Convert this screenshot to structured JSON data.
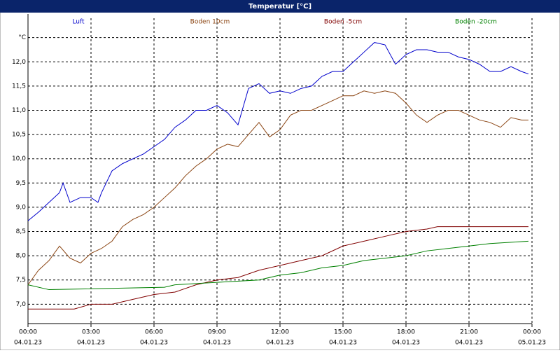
{
  "chart_data": {
    "type": "line",
    "title": "Temperatur [°C]",
    "series": [
      {
        "name": "Luft",
        "color": "#0000cc",
        "x": [
          0,
          0.5,
          1,
          1.5,
          1.67,
          2,
          2.5,
          3,
          3.33,
          3.5,
          4,
          4.5,
          5,
          5.5,
          6,
          6.5,
          7,
          7.5,
          8,
          8.5,
          9,
          9.5,
          10,
          10.5,
          11,
          11.5,
          12,
          12.5,
          13,
          13.5,
          14,
          14.5,
          15,
          15.5,
          16,
          16.5,
          17,
          17.5,
          18,
          18.5,
          19,
          19.5,
          20,
          20.5,
          21,
          21.5,
          22,
          22.5,
          23,
          23.5,
          23.83
        ],
        "values": [
          8.72,
          8.9,
          9.1,
          9.3,
          9.5,
          9.1,
          9.2,
          9.2,
          9.1,
          9.3,
          9.75,
          9.9,
          10.0,
          10.1,
          10.25,
          10.4,
          10.65,
          10.8,
          11.0,
          11.0,
          11.1,
          10.95,
          10.7,
          11.45,
          11.55,
          11.35,
          11.4,
          11.35,
          11.45,
          11.5,
          11.7,
          11.8,
          11.8,
          12.0,
          12.2,
          12.4,
          12.35,
          11.95,
          12.15,
          12.25,
          12.25,
          12.2,
          12.2,
          12.1,
          12.05,
          11.95,
          11.8,
          11.8,
          11.9,
          11.8,
          11.75
        ]
      },
      {
        "name": "Boden 10cm",
        "color": "#8b4513",
        "x": [
          0,
          0.5,
          1,
          1.5,
          2,
          2.5,
          3,
          3.5,
          4,
          4.5,
          5,
          5.5,
          6,
          6.5,
          7,
          7.5,
          8,
          8.5,
          9,
          9.5,
          10,
          10.5,
          11,
          11.5,
          12,
          12.5,
          13,
          13.5,
          14,
          14.5,
          15,
          15.5,
          16,
          16.5,
          17,
          17.5,
          18,
          18.5,
          19,
          19.5,
          20,
          20.5,
          21,
          21.5,
          22,
          22.5,
          23,
          23.5,
          23.83
        ],
        "values": [
          7.4,
          7.7,
          7.9,
          8.2,
          7.95,
          7.85,
          8.05,
          8.15,
          8.3,
          8.6,
          8.75,
          8.85,
          9.0,
          9.2,
          9.4,
          9.65,
          9.85,
          10.0,
          10.2,
          10.3,
          10.25,
          10.5,
          10.75,
          10.45,
          10.6,
          10.9,
          11.0,
          11.0,
          11.1,
          11.2,
          11.3,
          11.3,
          11.4,
          11.35,
          11.4,
          11.35,
          11.15,
          10.9,
          10.75,
          10.9,
          11.0,
          11.0,
          10.9,
          10.8,
          10.75,
          10.65,
          10.85,
          10.8,
          10.8
        ]
      },
      {
        "name": "Boden -5cm",
        "color": "#800000",
        "x": [
          0,
          2.2,
          3,
          4,
          5,
          6,
          7,
          8,
          9,
          10,
          11,
          12,
          13,
          14,
          15,
          16,
          17,
          18,
          19,
          19.5,
          23.83
        ],
        "values": [
          6.9,
          6.9,
          7.0,
          7.0,
          7.1,
          7.2,
          7.25,
          7.4,
          7.5,
          7.55,
          7.7,
          7.8,
          7.9,
          8.0,
          8.2,
          8.3,
          8.4,
          8.5,
          8.55,
          8.6,
          8.6
        ]
      },
      {
        "name": "Boden -20cm",
        "color": "#008000",
        "x": [
          0,
          1,
          6.5,
          7,
          9,
          11,
          12,
          13,
          14,
          15,
          16,
          17,
          18,
          19,
          20,
          21,
          22,
          23.83
        ],
        "values": [
          7.4,
          7.3,
          7.35,
          7.4,
          7.45,
          7.5,
          7.6,
          7.65,
          7.75,
          7.8,
          7.9,
          7.95,
          8.0,
          8.1,
          8.15,
          8.2,
          8.25,
          8.3
        ]
      }
    ],
    "xlim": [
      0,
      24
    ],
    "xticks": [
      {
        "value": 0,
        "label": "00:00"
      },
      {
        "value": 3,
        "label": "03:00"
      },
      {
        "value": 6,
        "label": "06:00"
      },
      {
        "value": 9,
        "label": "09:00"
      },
      {
        "value": 12,
        "label": "12:00"
      },
      {
        "value": 15,
        "label": "15:00"
      },
      {
        "value": 18,
        "label": "18:00"
      },
      {
        "value": 21,
        "label": "21:00"
      },
      {
        "value": 24,
        "label": "00:00"
      }
    ],
    "xtick_dates": [
      "04.01.23",
      "04.01.23",
      "04.01.23",
      "04.01.23",
      "04.01.23",
      "04.01.23",
      "04.01.23",
      "04.01.23",
      "05.01.23"
    ],
    "ylim": [
      6.6,
      12.9
    ],
    "yticks": [
      {
        "value": 7,
        "label": "7,0"
      },
      {
        "value": 7.5,
        "label": "7,5"
      },
      {
        "value": 8,
        "label": "8,0"
      },
      {
        "value": 8.5,
        "label": "8,5"
      },
      {
        "value": 9,
        "label": "9,0"
      },
      {
        "value": 9.5,
        "label": "9,5"
      },
      {
        "value": 10,
        "label": "10,0"
      },
      {
        "value": 10.5,
        "label": "10,5"
      },
      {
        "value": 11,
        "label": "11,0"
      },
      {
        "value": 11.5,
        "label": "11,5"
      },
      {
        "value": 12,
        "label": "12,0"
      },
      {
        "value": 12.5,
        "label": "°C"
      }
    ],
    "grid": true
  }
}
